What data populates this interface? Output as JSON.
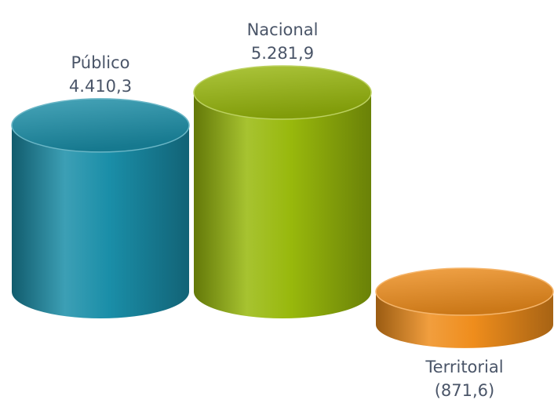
{
  "chart_data": {
    "type": "bar",
    "categories": [
      "Público",
      "Nacional",
      "Territorial"
    ],
    "values": [
      4410.3,
      5281.9,
      -871.6
    ],
    "value_labels": [
      "4.410,3",
      "5.281,9",
      "(871,6)"
    ],
    "colors": [
      "#1a8ea8",
      "#98b80c",
      "#ef8d1c"
    ]
  }
}
